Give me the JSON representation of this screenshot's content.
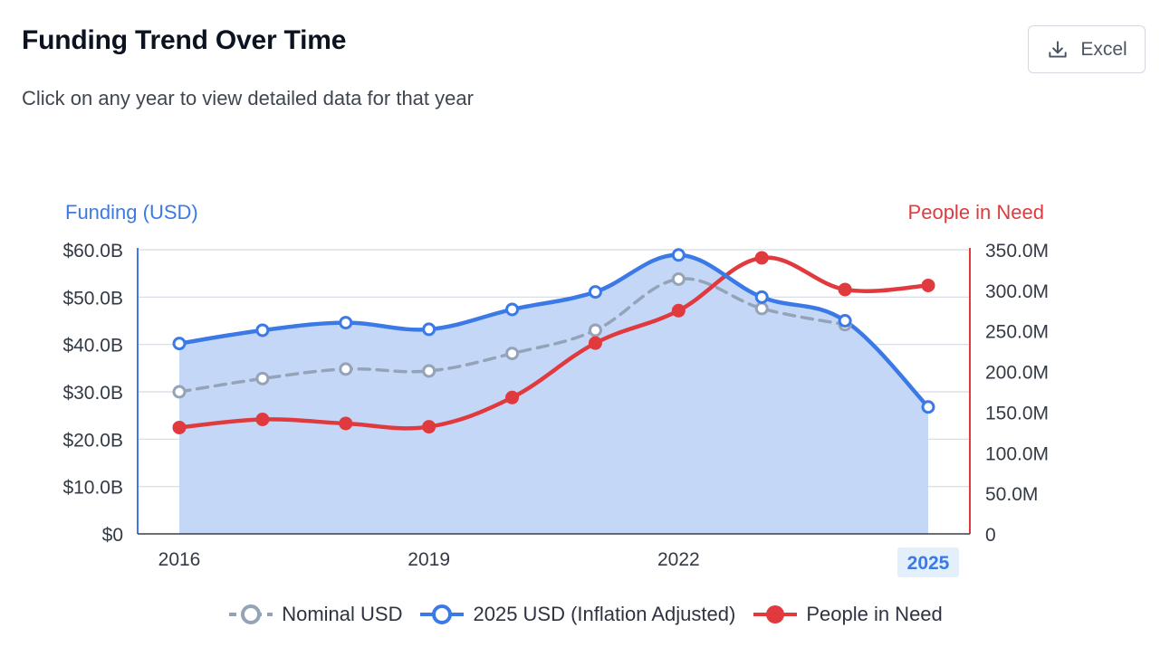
{
  "header": {
    "title": "Funding Trend Over Time",
    "subtitle": "Click on any year to view detailed data for that year",
    "excel_label": "Excel",
    "excel_icon": "download-icon"
  },
  "colors": {
    "nominal": "#94a3b8",
    "adjusted": "#3b7ae6",
    "area_fill": "#c5d7f6",
    "people": "#e03a3e",
    "grid": "#d6dae3",
    "selected_tick_bg": "#e4effc"
  },
  "chart_data": {
    "type": "line",
    "x": [
      2016,
      2017,
      2018,
      2019,
      2020,
      2021,
      2022,
      2023,
      2024,
      2025
    ],
    "x_tick_labels": [
      "2016",
      "2019",
      "2022",
      "2025"
    ],
    "x_tick_values": [
      2016,
      2019,
      2022,
      2025
    ],
    "selected_year": "2025",
    "y_left": {
      "label": "Funding (USD)",
      "range": [
        0,
        60
      ],
      "tick_values": [
        0,
        10,
        20,
        30,
        40,
        50,
        60
      ],
      "tick_labels": [
        "$0",
        "$10.0B",
        "$20.0B",
        "$30.0B",
        "$40.0B",
        "$50.0B",
        "$60.0B"
      ]
    },
    "y_right": {
      "label": "People in Need",
      "range": [
        0,
        350
      ],
      "tick_values": [
        0,
        50,
        100,
        150,
        200,
        250,
        300,
        350
      ],
      "tick_labels": [
        "0",
        "50.0M",
        "100.0M",
        "150.0M",
        "200.0M",
        "250.0M",
        "300.0M",
        "350.0M"
      ]
    },
    "grid": true,
    "legend_position": "bottom",
    "series": [
      {
        "name": "Nominal USD",
        "axis": "left",
        "style": "dashed-hollow",
        "values": [
          30.0,
          32.8,
          34.8,
          34.4,
          38.1,
          43.0,
          53.8,
          47.6,
          44.2,
          null
        ]
      },
      {
        "name": "2025 USD (Inflation Adjusted)",
        "axis": "left",
        "style": "solid-hollow-area",
        "values": [
          40.2,
          43.0,
          44.6,
          43.2,
          47.4,
          51.1,
          58.9,
          50.0,
          45.0,
          26.8
        ]
      },
      {
        "name": "People in Need",
        "axis": "right",
        "style": "solid-filled",
        "values": [
          131,
          141,
          136,
          132,
          168,
          235,
          275,
          340,
          301,
          306
        ]
      }
    ]
  }
}
